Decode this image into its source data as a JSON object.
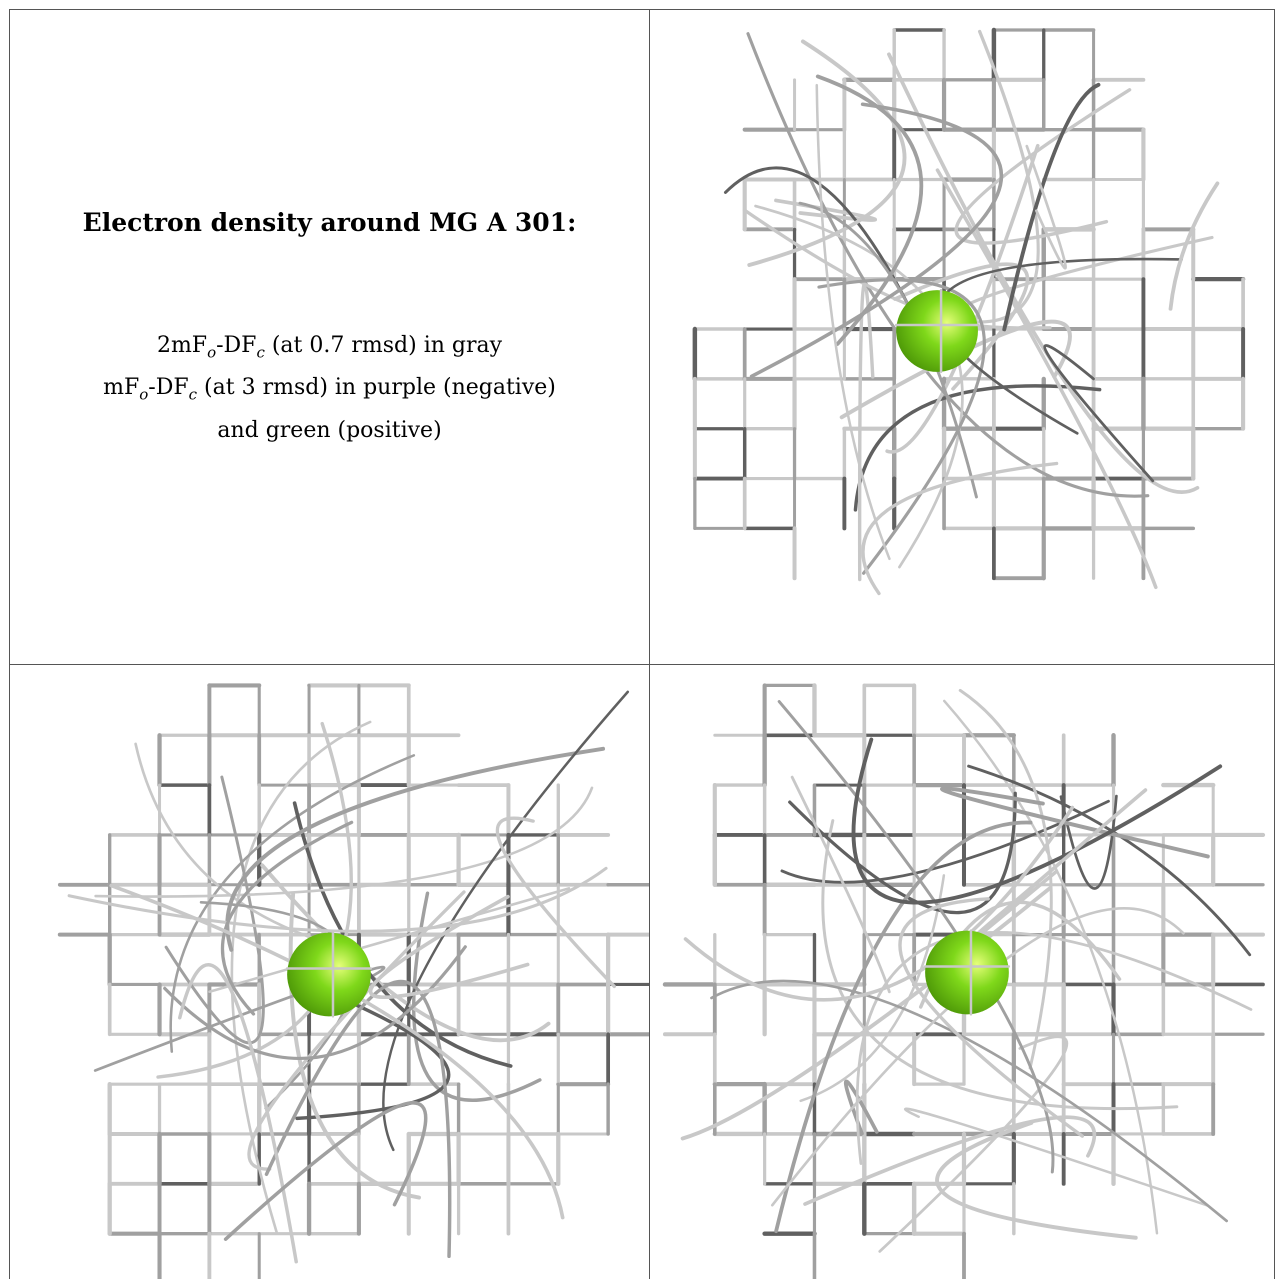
{
  "legend": {
    "title": "Electron density around MG A 301:",
    "line1": {
      "a": "2mF",
      "a_sub": "o",
      "b": "-DF",
      "b_sub": "c",
      "rest": " (at 0.7 rmsd) in gray"
    },
    "line2": {
      "a": "mF",
      "a_sub": "o",
      "b": "-DF",
      "b_sub": "c",
      "rest": " (at 3 rmsd) in purple (negative)"
    },
    "line3": "and green (positive)"
  },
  "colors": {
    "mesh_light": "#c8c8c8",
    "mesh_mid": "#a0a0a0",
    "mesh_dark": "#606060",
    "atom_green": "#7fd81a",
    "atom_highlight": "#e6ff7a",
    "atom_shadow": "#4f9a08",
    "frame": "#555555"
  },
  "views": [
    {
      "id": "view-1",
      "atom": "MG A 301"
    },
    {
      "id": "view-2",
      "atom": "MG A 301"
    },
    {
      "id": "view-3",
      "atom": "MG A 301"
    }
  ]
}
